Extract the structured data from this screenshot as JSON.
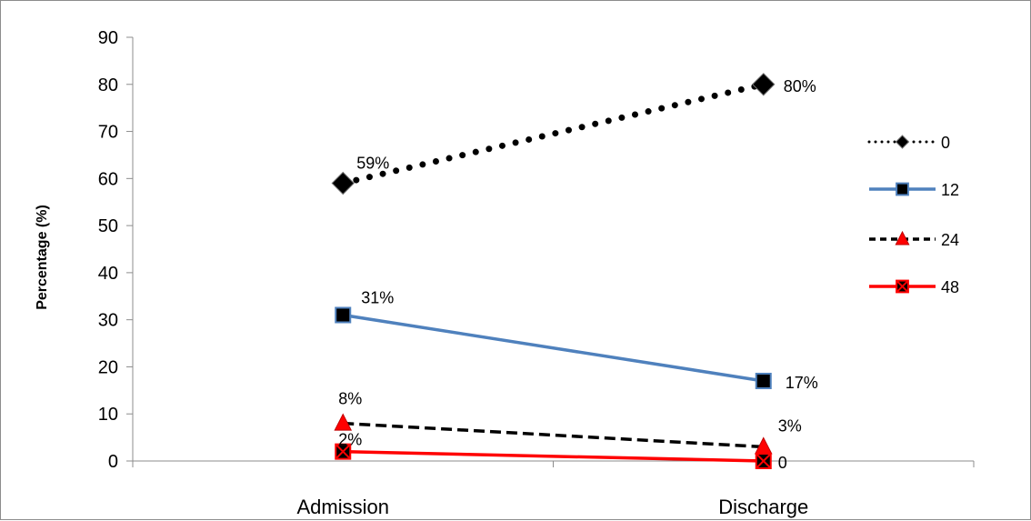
{
  "chart_data": {
    "type": "line",
    "title": "",
    "xlabel": "",
    "ylabel": "Percentage (%)",
    "categories": [
      "Admission",
      "Discharge"
    ],
    "ylim": [
      0,
      90
    ],
    "yticks": [
      0,
      10,
      20,
      30,
      40,
      50,
      60,
      70,
      80,
      90
    ],
    "grid": false,
    "legend_position": "right",
    "series": [
      {
        "name": "0",
        "values": [
          59,
          80
        ],
        "labels": [
          "59%",
          "80%"
        ],
        "color": "#000000",
        "line_style": "dotted",
        "marker": "diamond",
        "marker_fill": "#000000"
      },
      {
        "name": "12",
        "values": [
          31,
          17
        ],
        "labels": [
          "31%",
          "17%"
        ],
        "color": "#4f81bd",
        "line_style": "solid",
        "marker": "square",
        "marker_fill": "#000000"
      },
      {
        "name": "24",
        "values": [
          8,
          3
        ],
        "labels": [
          "8%",
          "3%"
        ],
        "color": "#000000",
        "line_style": "dashed",
        "marker": "triangle",
        "marker_fill": "#ff0000"
      },
      {
        "name": "48",
        "values": [
          2,
          0
        ],
        "labels": [
          "2%",
          "0"
        ],
        "color": "#ff0000",
        "line_style": "solid",
        "marker": "x-square",
        "marker_fill": "#000000"
      }
    ]
  }
}
